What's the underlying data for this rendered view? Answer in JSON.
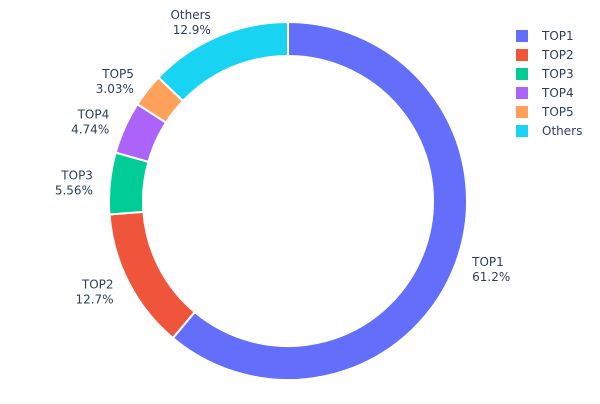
{
  "chart_data": {
    "type": "pie",
    "hole": true,
    "title": "",
    "slices": [
      {
        "label": "TOP1",
        "value": 61.2,
        "percent_text": "61.2%",
        "color": "#636efa"
      },
      {
        "label": "TOP2",
        "value": 12.7,
        "percent_text": "12.7%",
        "color": "#ef553b"
      },
      {
        "label": "TOP3",
        "value": 5.56,
        "percent_text": "5.56%",
        "color": "#00cc96"
      },
      {
        "label": "TOP4",
        "value": 4.74,
        "percent_text": "4.74%",
        "color": "#ab63fa"
      },
      {
        "label": "TOP5",
        "value": 3.03,
        "percent_text": "3.03%",
        "color": "#ffa15a"
      },
      {
        "label": "Others",
        "value": 12.9,
        "percent_text": "12.9%",
        "color": "#19d3f3"
      }
    ],
    "legend": {
      "position": "top-right",
      "entries": [
        "TOP1",
        "TOP2",
        "TOP3",
        "TOP4",
        "TOP5",
        "Others"
      ]
    }
  }
}
